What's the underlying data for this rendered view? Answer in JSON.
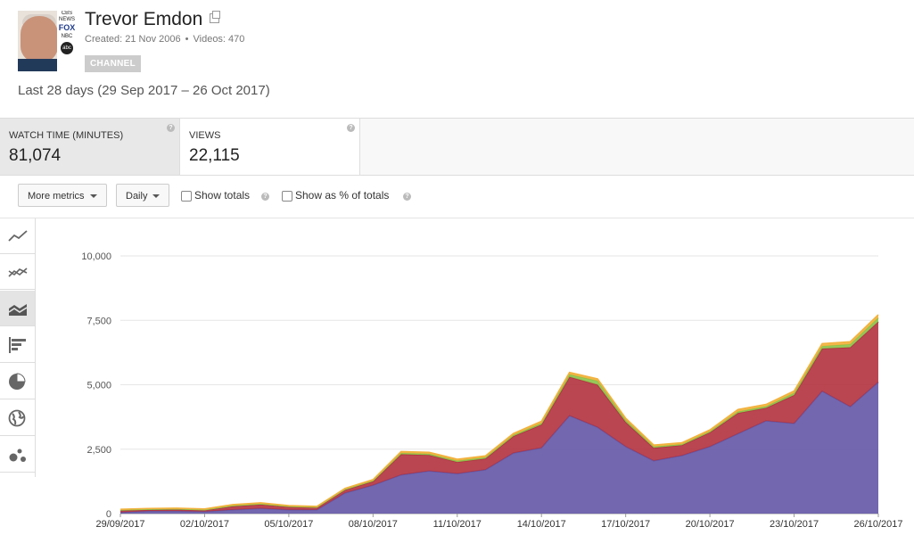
{
  "header": {
    "title": "Trevor Emdon",
    "created": "Created: 21 Nov 2006",
    "videos": "Videos: 470",
    "badge": "CHANNEL",
    "date_range": "Last 28 days (29 Sep 2017 – 26 Oct 2017)",
    "avatar_logos": {
      "cbs": "CBS NEWS",
      "fox": "FOX",
      "nbc": "NBC",
      "abc": "abc"
    }
  },
  "metrics": [
    {
      "label": "WATCH TIME (MINUTES)",
      "value": "81,074",
      "active": true
    },
    {
      "label": "VIEWS",
      "value": "22,115",
      "active": false
    }
  ],
  "controls": {
    "more_metrics": "More metrics",
    "interval": "Daily",
    "show_totals": "Show totals",
    "show_pct": "Show as % of totals"
  },
  "chart_types": [
    {
      "name": "line-chart-icon",
      "active": false
    },
    {
      "name": "multi-line-chart-icon",
      "active": false
    },
    {
      "name": "stacked-area-chart-icon",
      "active": true
    },
    {
      "name": "bar-chart-icon",
      "active": false
    },
    {
      "name": "pie-chart-icon",
      "active": false
    },
    {
      "name": "globe-map-icon",
      "active": false
    },
    {
      "name": "bubble-chart-icon",
      "active": false
    }
  ],
  "chart_data": {
    "type": "area",
    "stacked": true,
    "grid": true,
    "ylim": [
      0,
      10000
    ],
    "y_ticks": [
      0,
      2500,
      5000,
      7500,
      10000
    ],
    "y_tick_labels": [
      "0",
      "2,500",
      "5,000",
      "7,500",
      "10,000"
    ],
    "x_tick_labels": [
      "29/09/2017",
      "02/10/2017",
      "05/10/2017",
      "08/10/2017",
      "11/10/2017",
      "14/10/2017",
      "17/10/2017",
      "20/10/2017",
      "23/10/2017",
      "26/10/2017"
    ],
    "x_tick_index": [
      0,
      3,
      6,
      9,
      12,
      15,
      18,
      21,
      24,
      27
    ],
    "dates": [
      "29/09/2017",
      "30/09/2017",
      "01/10/2017",
      "02/10/2017",
      "03/10/2017",
      "04/10/2017",
      "05/10/2017",
      "06/10/2017",
      "07/10/2017",
      "08/10/2017",
      "09/10/2017",
      "10/10/2017",
      "11/10/2017",
      "12/10/2017",
      "13/10/2017",
      "14/10/2017",
      "15/10/2017",
      "16/10/2017",
      "17/10/2017",
      "18/10/2017",
      "19/10/2017",
      "20/10/2017",
      "21/10/2017",
      "22/10/2017",
      "23/10/2017",
      "24/10/2017",
      "25/10/2017",
      "26/10/2017"
    ],
    "series": [
      {
        "color": "#6457a6",
        "values": [
          50,
          100,
          100,
          80,
          150,
          200,
          150,
          150,
          800,
          1100,
          1500,
          1650,
          1550,
          1700,
          2350,
          2550,
          3800,
          3350,
          2600,
          2050,
          2250,
          2600,
          3100,
          3600,
          3500,
          4750,
          4150,
          5100
        ]
      },
      {
        "color": "#b2323f",
        "values": [
          70,
          50,
          60,
          50,
          130,
          150,
          110,
          80,
          120,
          150,
          800,
          620,
          450,
          430,
          650,
          900,
          1500,
          1650,
          950,
          500,
          400,
          550,
          800,
          500,
          1100,
          1650,
          2300,
          2350
        ]
      },
      {
        "color": "#8bc34a",
        "values": [
          20,
          20,
          20,
          20,
          30,
          30,
          20,
          20,
          20,
          30,
          50,
          50,
          50,
          50,
          50,
          60,
          100,
          150,
          80,
          50,
          40,
          40,
          60,
          60,
          80,
          100,
          120,
          150
        ]
      },
      {
        "color": "#f2b13c",
        "values": [
          30,
          30,
          30,
          30,
          40,
          40,
          30,
          30,
          40,
          40,
          60,
          60,
          60,
          60,
          60,
          70,
          80,
          80,
          70,
          60,
          60,
          60,
          80,
          80,
          80,
          100,
          100,
          120
        ]
      }
    ]
  }
}
